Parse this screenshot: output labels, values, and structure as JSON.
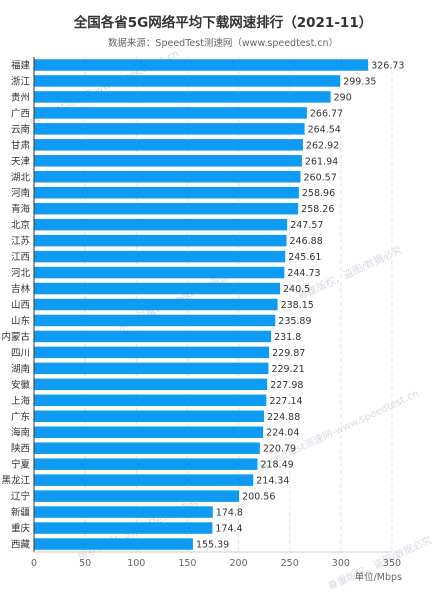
{
  "chart_data": {
    "type": "bar",
    "orientation": "horizontal",
    "title": "全国各省5G网络平均下载网速排行（2021-11）",
    "subtitle": "数据来源：SpeedTest测速网（www.speedtest.cn）",
    "xlabel": "单位/Mbps",
    "xlim": [
      0,
      350
    ],
    "xticks": [
      0,
      50,
      100,
      150,
      200,
      250,
      300,
      350
    ],
    "grid": true,
    "bar_color": "#0f9bf2",
    "categories": [
      "福建",
      "浙江",
      "贵州",
      "广西",
      "云南",
      "甘肃",
      "天津",
      "湖北",
      "河南",
      "青海",
      "北京",
      "江苏",
      "江西",
      "河北",
      "吉林",
      "山西",
      "山东",
      "内蒙古",
      "四川",
      "湖南",
      "安徽",
      "上海",
      "广东",
      "海南",
      "陕西",
      "宁夏",
      "黑龙江",
      "辽宁",
      "新疆",
      "重庆",
      "西藏"
    ],
    "values": [
      326.73,
      299.35,
      290,
      266.77,
      264.54,
      262.92,
      261.94,
      260.57,
      258.96,
      258.26,
      247.57,
      246.88,
      245.61,
      244.73,
      240.5,
      238.15,
      235.89,
      231.8,
      229.87,
      229.21,
      227.98,
      227.14,
      224.88,
      224.04,
      220.79,
      218.49,
      214.34,
      200.56,
      174.8,
      174.4,
      155.39
    ],
    "watermarks": [
      "SpeedTest测速网-www.speedtest.cn",
      "版权归属：SpeedTest测速网",
      "尊重版权，盗图/数据必究"
    ]
  }
}
